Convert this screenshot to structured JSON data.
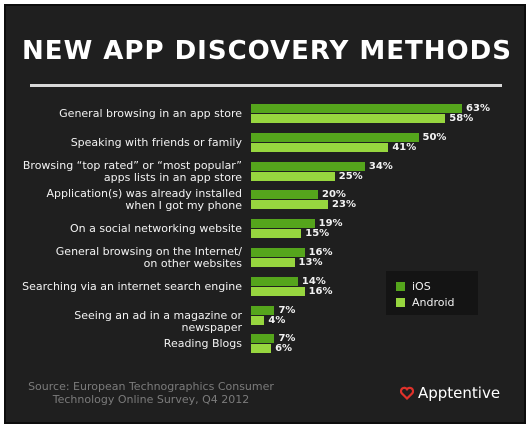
{
  "colors": {
    "ios": "#55a51c",
    "android": "#97d63f",
    "background": "#1f1f1f",
    "brand": "#e0322b"
  },
  "legend": {
    "ios": "iOS",
    "android": "Android"
  },
  "source": "Source: European Technographics Consumer\nTechnology Online Survey, Q4 2012",
  "brand": {
    "name": "Apptentive",
    "icon": "heart-icon"
  },
  "chart_data": {
    "type": "bar",
    "orientation": "horizontal",
    "title": "NEW APP DISCOVERY METHODS",
    "categories": [
      "General browsing in an app store",
      "Speaking with friends or family",
      "Browsing “top rated” or “most popular”\napps lists in an app store",
      "Application(s) was already installed\nwhen I got my phone",
      "On a social networking website",
      "General browsing on the Internet/\non other websites",
      "Searching via an internet search engine",
      "Seeing an ad in a magazine or newspaper",
      "Reading Blogs"
    ],
    "series": [
      {
        "name": "iOS",
        "values": [
          63,
          50,
          34,
          20,
          19,
          16,
          14,
          7,
          7
        ]
      },
      {
        "name": "Android",
        "values": [
          58,
          41,
          25,
          23,
          15,
          13,
          16,
          4,
          6
        ]
      }
    ],
    "value_suffix": "%",
    "legend_position": "right",
    "grid": false
  }
}
